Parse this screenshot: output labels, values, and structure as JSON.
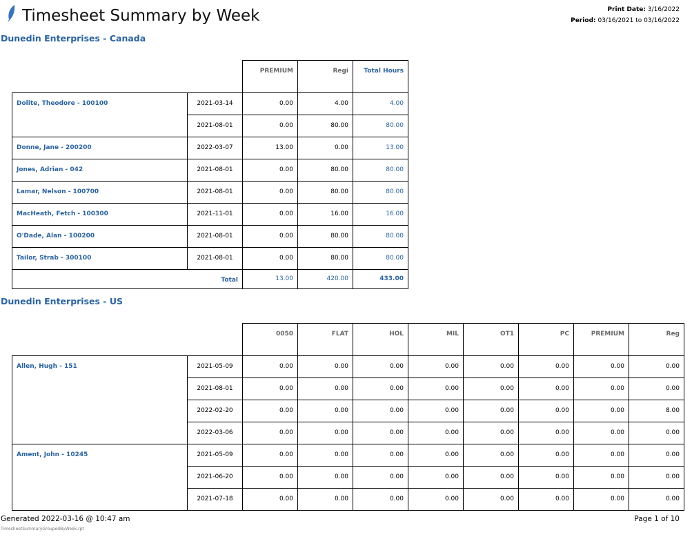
{
  "header": {
    "title": "Timesheet Summary by Week",
    "print_date_label": "Print Date:",
    "print_date": "3/16/2022",
    "period_label": "Period:",
    "period": "03/16/2021 to 03/16/2022"
  },
  "sections": [
    {
      "name": "Dunedin Enterprises - Canada",
      "columns": [
        "PREMIUM",
        "Regi",
        "Total Hours"
      ],
      "employees": [
        {
          "name": "Dolite, Theodore - 100100",
          "rows": [
            [
              "2021-03-14",
              "0.00",
              "4.00",
              "4.00"
            ],
            [
              "2021-08-01",
              "0.00",
              "80.00",
              "80.00"
            ]
          ]
        },
        {
          "name": "Donne, Jane - 200200",
          "rows": [
            [
              "2022-03-07",
              "13.00",
              "0.00",
              "13.00"
            ]
          ]
        },
        {
          "name": "Jones, Adrian - 042",
          "rows": [
            [
              "2021-08-01",
              "0.00",
              "80.00",
              "80.00"
            ]
          ]
        },
        {
          "name": "Lamar, Nelson - 100700",
          "rows": [
            [
              "2021-08-01",
              "0.00",
              "80.00",
              "80.00"
            ]
          ]
        },
        {
          "name": "MacHeath, Fetch - 100300",
          "rows": [
            [
              "2021-11-01",
              "0.00",
              "16.00",
              "16.00"
            ]
          ]
        },
        {
          "name": "O'Dade, Alan - 100200",
          "rows": [
            [
              "2021-08-01",
              "0.00",
              "80.00",
              "80.00"
            ]
          ]
        },
        {
          "name": "Tailor, Strab - 300100",
          "rows": [
            [
              "2021-08-01",
              "0.00",
              "80.00",
              "80.00"
            ]
          ]
        }
      ],
      "total_label": "Total",
      "totals": [
        "13.00",
        "420.00",
        "433.00"
      ]
    },
    {
      "name": "Dunedin Enterprises - US",
      "columns": [
        "0050",
        "FLAT",
        "HOL",
        "MIL",
        "OT1",
        "PC",
        "PREMIUM",
        "Reg"
      ],
      "employees": [
        {
          "name": "Allen, Hugh - 151",
          "rows": [
            [
              "2021-05-09",
              "0.00",
              "0.00",
              "0.00",
              "0.00",
              "0.00",
              "0.00",
              "0.00",
              "0.00"
            ],
            [
              "2021-08-01",
              "0.00",
              "0.00",
              "0.00",
              "0.00",
              "0.00",
              "0.00",
              "0.00",
              "0.00"
            ],
            [
              "2022-02-20",
              "0.00",
              "0.00",
              "0.00",
              "0.00",
              "0.00",
              "0.00",
              "0.00",
              "8.00"
            ],
            [
              "2022-03-06",
              "0.00",
              "0.00",
              "0.00",
              "0.00",
              "0.00",
              "0.00",
              "0.00",
              "0.00"
            ]
          ]
        },
        {
          "name": "Ament, John - 10245",
          "rows": [
            [
              "2021-05-09",
              "0.00",
              "0.00",
              "0.00",
              "0.00",
              "0.00",
              "0.00",
              "0.00",
              "0.00"
            ],
            [
              "2021-06-20",
              "0.00",
              "0.00",
              "0.00",
              "0.00",
              "0.00",
              "0.00",
              "0.00",
              "0.00"
            ],
            [
              "2021-07-18",
              "0.00",
              "0.00",
              "0.00",
              "0.00",
              "0.00",
              "0.00",
              "0.00",
              "0.00"
            ]
          ]
        }
      ]
    }
  ],
  "footer": {
    "generated": "Generated 2022-03-16 @ 10:47 am",
    "page": "Page 1 of 10",
    "file": "TimesheetSummaryGroupedByWeek.rpt"
  }
}
